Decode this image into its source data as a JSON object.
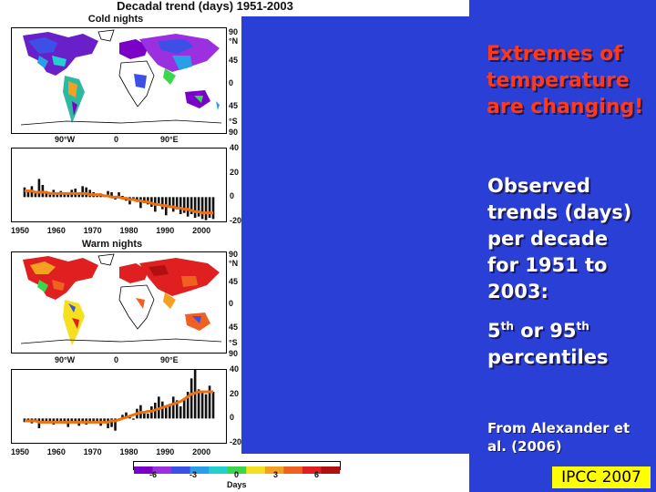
{
  "figure": {
    "title": "Decadal trend (days)  1951-2003",
    "map_lat_labels": [
      "90",
      "°N",
      "45",
      "0",
      "45",
      "°S",
      "90"
    ],
    "map_lon_labels": [
      "90°W",
      "0",
      "90°E"
    ],
    "colorbar": {
      "ticks": [
        "-6",
        "-3",
        "0",
        "3",
        "6"
      ],
      "label": "Days",
      "colors": [
        "#7a00c8",
        "#9b30e0",
        "#3c50e6",
        "#27a0e8",
        "#22d0d0",
        "#39d84a",
        "#f5e020",
        "#f5a020",
        "#f06020",
        "#e02020",
        "#b01010"
      ]
    }
  },
  "chart_data": [
    {
      "type": "bar",
      "title": "Cold nights",
      "x": [
        1951,
        1952,
        1953,
        1954,
        1955,
        1956,
        1957,
        1958,
        1959,
        1960,
        1961,
        1962,
        1963,
        1964,
        1965,
        1966,
        1967,
        1968,
        1969,
        1970,
        1971,
        1972,
        1973,
        1974,
        1975,
        1976,
        1977,
        1978,
        1979,
        1980,
        1981,
        1982,
        1983,
        1984,
        1985,
        1986,
        1987,
        1988,
        1989,
        1990,
        1991,
        1992,
        1993,
        1994,
        1995,
        1996,
        1997,
        1998,
        1999,
        2000,
        2001,
        2002,
        2003
      ],
      "values": [
        8,
        6,
        9,
        5,
        15,
        10,
        4,
        3,
        6,
        2,
        5,
        4,
        3,
        6,
        7,
        4,
        9,
        8,
        6,
        4,
        1,
        3,
        2,
        5,
        4,
        -2,
        4,
        1,
        -3,
        -6,
        -3,
        -4,
        -9,
        -5,
        -6,
        -8,
        -12,
        -6,
        -10,
        -15,
        -8,
        -12,
        -10,
        -14,
        -13,
        -16,
        -14,
        -17,
        -16,
        -18,
        -19,
        -17,
        -18
      ],
      "trend": [
        5,
        5,
        5,
        4,
        4,
        4,
        4,
        3,
        3,
        3,
        3,
        3,
        3,
        3,
        3,
        3,
        3,
        3,
        2,
        2,
        2,
        2,
        1,
        1,
        0,
        0,
        0,
        -1,
        -1,
        -2,
        -2,
        -3,
        -3,
        -4,
        -4,
        -5,
        -6,
        -6,
        -7,
        -7,
        -8,
        -8,
        -9,
        -9,
        -10,
        -10,
        -11,
        -12,
        -12,
        -13,
        -13,
        -13,
        -13
      ],
      "yticks": [
        40,
        20,
        0,
        -20
      ],
      "xticks": [
        1950,
        1960,
        1970,
        1980,
        1990,
        2000
      ],
      "ylim": [
        -20,
        40
      ],
      "bar_color": "#111111",
      "trend_color": "#f07010"
    },
    {
      "type": "bar",
      "title": "Warm nights",
      "x": [
        1951,
        1952,
        1953,
        1954,
        1955,
        1956,
        1957,
        1958,
        1959,
        1960,
        1961,
        1962,
        1963,
        1964,
        1965,
        1966,
        1967,
        1968,
        1969,
        1970,
        1971,
        1972,
        1973,
        1974,
        1975,
        1976,
        1977,
        1978,
        1979,
        1980,
        1981,
        1982,
        1983,
        1984,
        1985,
        1986,
        1987,
        1988,
        1989,
        1990,
        1991,
        1992,
        1993,
        1994,
        1995,
        1996,
        1997,
        1998,
        1999,
        2000,
        2001,
        2002,
        2003
      ],
      "values": [
        -3,
        -2,
        -4,
        -3,
        -8,
        -2,
        -4,
        -3,
        -5,
        -2,
        -3,
        -4,
        -7,
        -2,
        -4,
        -6,
        -3,
        -5,
        -2,
        -3,
        -2,
        -6,
        -2,
        -8,
        -7,
        -10,
        -2,
        3,
        5,
        1,
        -1,
        8,
        11,
        6,
        4,
        10,
        13,
        18,
        14,
        9,
        12,
        18,
        15,
        10,
        16,
        22,
        33,
        40,
        24,
        22,
        20,
        27,
        22
      ],
      "trend": [
        -2,
        -2,
        -2,
        -2,
        -3,
        -3,
        -3,
        -3,
        -3,
        -3,
        -3,
        -3,
        -3,
        -3,
        -3,
        -3,
        -3,
        -3,
        -3,
        -3,
        -3,
        -3,
        -3,
        -3,
        -2,
        -2,
        -1,
        0,
        1,
        2,
        3,
        4,
        5,
        5,
        6,
        6,
        7,
        8,
        9,
        10,
        11,
        12,
        13,
        14,
        16,
        18,
        20,
        21,
        22,
        22,
        22,
        22,
        22
      ],
      "yticks": [
        40,
        20,
        0,
        -20
      ],
      "xticks": [
        1950,
        1960,
        1970,
        1980,
        1990,
        2000
      ],
      "ylim": [
        -20,
        40
      ],
      "bar_color": "#111111",
      "trend_color": "#f07010"
    }
  ],
  "slide": {
    "headline": [
      "Extremes of",
      "temperature",
      "are changing!"
    ],
    "body_lines": [
      "Observed",
      "trends (days)",
      "per decade",
      "for 1951 to",
      "2003:"
    ],
    "percentile_prefix": "5",
    "percentile_sup1": "th",
    "percentile_mid": " or 95",
    "percentile_sup2": "th",
    "percentile_tail": "percentiles",
    "reference": "From Alexander et al. (2006)",
    "badge": "IPCC 2007",
    "headline_color": "#ff3a1a",
    "background_color": "#2a3fd6"
  }
}
